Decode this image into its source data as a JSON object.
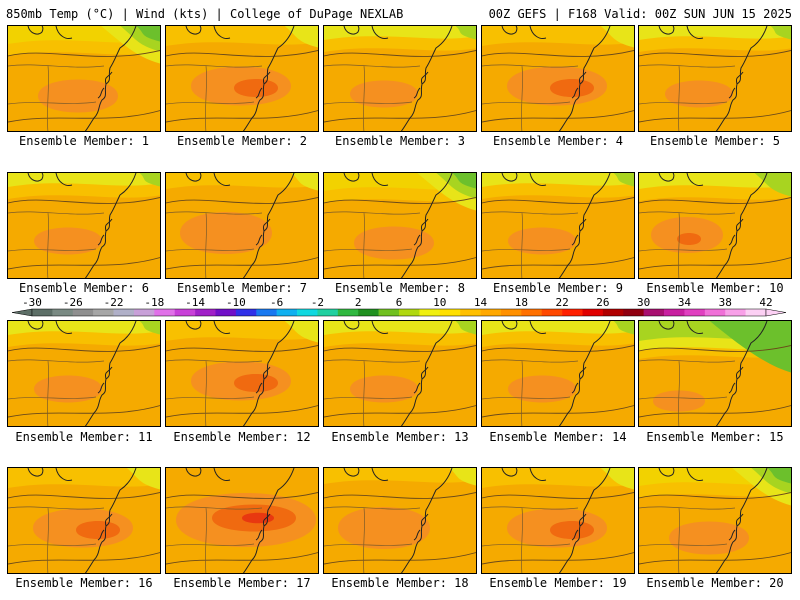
{
  "header": {
    "left": "850mb Temp (°C) | Wind (kts) | College of DuPage NEXLAB",
    "right": "00Z GEFS | F168 Valid: 00Z SUN JUN 15 2025"
  },
  "colorbar": {
    "labels": [
      "-30",
      "-26",
      "-22",
      "-18",
      "-14",
      "-10",
      "-6",
      "-2",
      "2",
      "6",
      "10",
      "14",
      "18",
      "22",
      "26",
      "30",
      "34",
      "38",
      "42"
    ],
    "colors": [
      "#5d6f67",
      "#7a8a83",
      "#8f8f8f",
      "#a6a6a6",
      "#b0b0c8",
      "#c8a0d8",
      "#e070e8",
      "#c840d8",
      "#a020c8",
      "#7010c8",
      "#3030e8",
      "#1878f0",
      "#10b0f0",
      "#10d8e0",
      "#20d0a0",
      "#30b840",
      "#209020",
      "#70c020",
      "#b0d810",
      "#f0f010",
      "#ffe000",
      "#ffc000",
      "#ffa800",
      "#ff9000",
      "#ff7000",
      "#ff4800",
      "#ff2000",
      "#e00000",
      "#b00000",
      "#900010",
      "#a81070",
      "#c820a0",
      "#e040c0",
      "#f070d8",
      "#f8a0e8",
      "#fcd0f4"
    ]
  },
  "panels": [
    {
      "label": "Ensemble Member: 1",
      "variant": "cool_ne"
    },
    {
      "label": "Ensemble Member: 2",
      "variant": "warm_center"
    },
    {
      "label": "Ensemble Member: 3",
      "variant": "yellow_top"
    },
    {
      "label": "Ensemble Member: 4",
      "variant": "warm_center"
    },
    {
      "label": "Ensemble Member: 5",
      "variant": "yellow_top"
    },
    {
      "label": "Ensemble Member: 6",
      "variant": "yellow_top"
    },
    {
      "label": "Ensemble Member: 7",
      "variant": "warm_uniform"
    },
    {
      "label": "Ensemble Member: 8",
      "variant": "cool_ne"
    },
    {
      "label": "Ensemble Member: 9",
      "variant": "yellow_top"
    },
    {
      "label": "Ensemble Member: 10",
      "variant": "hot_spot"
    },
    {
      "label": "Ensemble Member: 11",
      "variant": "yellow_top"
    },
    {
      "label": "Ensemble Member: 12",
      "variant": "warm_center"
    },
    {
      "label": "Ensemble Member: 13",
      "variant": "yellow_top"
    },
    {
      "label": "Ensemble Member: 14",
      "variant": "yellow_top"
    },
    {
      "label": "Ensemble Member: 15",
      "variant": "cool_top"
    },
    {
      "label": "Ensemble Member: 16",
      "variant": "warm_center"
    },
    {
      "label": "Ensemble Member: 17",
      "variant": "hot_center"
    },
    {
      "label": "Ensemble Member: 18",
      "variant": "warm_uniform"
    },
    {
      "label": "Ensemble Member: 19",
      "variant": "warm_center"
    },
    {
      "label": "Ensemble Member: 20",
      "variant": "cool_ne"
    }
  ]
}
